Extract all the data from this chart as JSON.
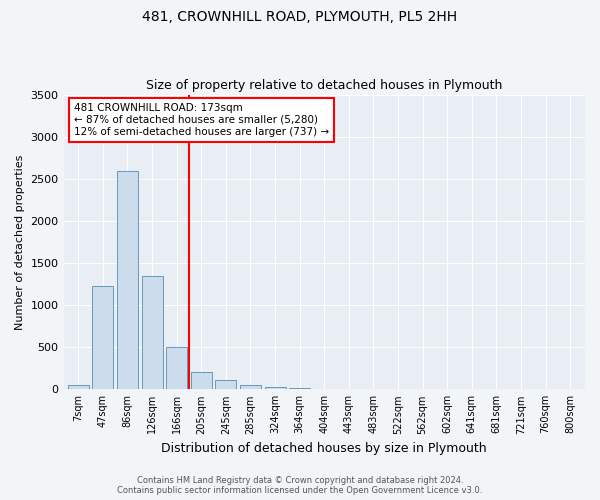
{
  "title1": "481, CROWNHILL ROAD, PLYMOUTH, PL5 2HH",
  "title2": "Size of property relative to detached houses in Plymouth",
  "xlabel": "Distribution of detached houses by size in Plymouth",
  "ylabel": "Number of detached properties",
  "categories": [
    "7sqm",
    "47sqm",
    "86sqm",
    "126sqm",
    "166sqm",
    "205sqm",
    "245sqm",
    "285sqm",
    "324sqm",
    "364sqm",
    "404sqm",
    "443sqm",
    "483sqm",
    "522sqm",
    "562sqm",
    "602sqm",
    "641sqm",
    "681sqm",
    "721sqm",
    "760sqm",
    "800sqm"
  ],
  "values": [
    50,
    1230,
    2590,
    1350,
    500,
    200,
    110,
    50,
    30,
    10,
    5,
    5,
    5,
    0,
    0,
    0,
    0,
    0,
    0,
    0,
    0
  ],
  "bar_color": "#ccdcec",
  "bar_edge_color": "#6699bb",
  "ylim": [
    0,
    3500
  ],
  "yticks": [
    0,
    500,
    1000,
    1500,
    2000,
    2500,
    3000,
    3500
  ],
  "annotation_line1": "481 CROWNHILL ROAD: 173sqm",
  "annotation_line2": "← 87% of detached houses are smaller (5,280)",
  "annotation_line3": "12% of semi-detached houses are larger (737) →",
  "footer1": "Contains HM Land Registry data © Crown copyright and database right 2024.",
  "footer2": "Contains public sector information licensed under the Open Government Licence v3.0.",
  "bg_color": "#f2f5f8",
  "plot_bg_color": "#e8eef4",
  "grid_color": "#ffffff",
  "title1_fontsize": 10,
  "title2_fontsize": 9,
  "footer_fontsize": 6
}
